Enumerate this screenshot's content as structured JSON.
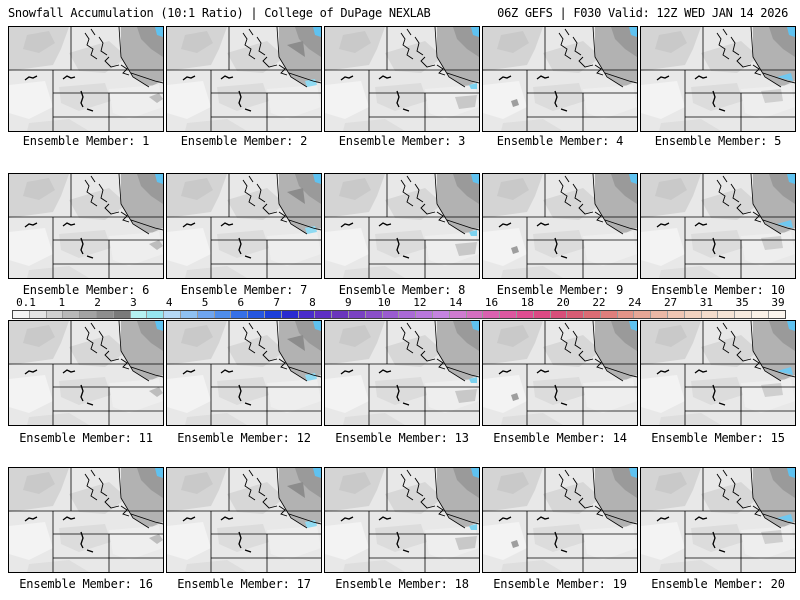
{
  "header": {
    "left": "Snowfall Accumulation (10:1 Ratio) | College of DuPage NEXLAB",
    "right": "06Z GEFS | F030 Valid: 12Z WED JAN 14 2026"
  },
  "members": [
    "Ensemble Member: 1",
    "Ensemble Member: 2",
    "Ensemble Member: 3",
    "Ensemble Member: 4",
    "Ensemble Member: 5",
    "Ensemble Member: 6",
    "Ensemble Member: 7",
    "Ensemble Member: 8",
    "Ensemble Member: 9",
    "Ensemble Member: 10",
    "Ensemble Member: 11",
    "Ensemble Member: 12",
    "Ensemble Member: 13",
    "Ensemble Member: 14",
    "Ensemble Member: 15",
    "Ensemble Member: 16",
    "Ensemble Member: 17",
    "Ensemble Member: 18",
    "Ensemble Member: 19",
    "Ensemble Member: 20"
  ],
  "colorbar": {
    "labels": [
      "0.1",
      "1",
      "2",
      "3",
      "4",
      "5",
      "6",
      "7",
      "8",
      "9",
      "10",
      "12",
      "14",
      "16",
      "18",
      "20",
      "22",
      "24",
      "27",
      "31",
      "35",
      "39"
    ],
    "colors": [
      "#f4f4f4",
      "#e3e3e3",
      "#d0d0d0",
      "#b9b9b9",
      "#a3a3a3",
      "#8e8e8e",
      "#7a7a7a",
      "#b6f2f2",
      "#97e6ef",
      "#b5d9f6",
      "#8fc1f2",
      "#6fa5ef",
      "#4f8deb",
      "#3770e6",
      "#2556e0",
      "#1b3ed9",
      "#2a2bd0",
      "#4a2ccb",
      "#5e2fc4",
      "#6a36bd",
      "#7a42c3",
      "#8a4ec9",
      "#9a5cd0",
      "#aa6ad6",
      "#b977dd",
      "#c584e0",
      "#cf7bd0",
      "#d56ec0",
      "#da62b0",
      "#dd57a0",
      "#de4d91",
      "#dc4a84",
      "#d84f7a",
      "#d85c74",
      "#db6c74",
      "#df7e7c",
      "#e39488",
      "#e7a796",
      "#ebb8a6",
      "#efc6b4",
      "#f2d2c0",
      "#f4dccc",
      "#f6e4d6",
      "#f8ebe0",
      "#faf1e8",
      "#fbf5ee"
    ]
  }
}
